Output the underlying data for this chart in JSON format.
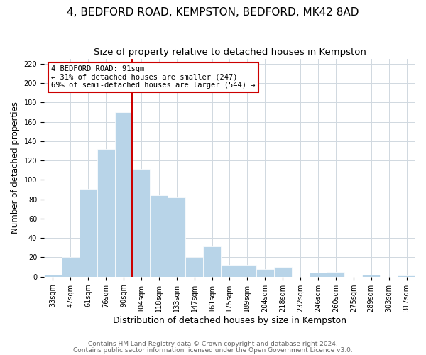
{
  "title": "4, BEDFORD ROAD, KEMPSTON, BEDFORD, MK42 8AD",
  "subtitle": "Size of property relative to detached houses in Kempston",
  "xlabel": "Distribution of detached houses by size in Kempston",
  "ylabel": "Number of detached properties",
  "bar_labels": [
    "33sqm",
    "47sqm",
    "61sqm",
    "76sqm",
    "90sqm",
    "104sqm",
    "118sqm",
    "133sqm",
    "147sqm",
    "161sqm",
    "175sqm",
    "189sqm",
    "204sqm",
    "218sqm",
    "232sqm",
    "246sqm",
    "260sqm",
    "275sqm",
    "289sqm",
    "303sqm",
    "317sqm"
  ],
  "bar_values": [
    2,
    20,
    91,
    132,
    170,
    111,
    84,
    82,
    20,
    31,
    12,
    12,
    8,
    10,
    0,
    4,
    5,
    0,
    2,
    0,
    1
  ],
  "bar_color": "#b8d4e8",
  "bar_edge_color": "#b8d4e8",
  "grid_color": "#d0d8e0",
  "background_color": "#ffffff",
  "annotation_box_text": "4 BEDFORD ROAD: 91sqm\n← 31% of detached houses are smaller (247)\n69% of semi-detached houses are larger (544) →",
  "annotation_box_edge_color": "#cc0000",
  "vline_color": "#cc0000",
  "ylim": [
    0,
    225
  ],
  "yticks": [
    0,
    20,
    40,
    60,
    80,
    100,
    120,
    140,
    160,
    180,
    200,
    220
  ],
  "footer_line1": "Contains HM Land Registry data © Crown copyright and database right 2024.",
  "footer_line2": "Contains public sector information licensed under the Open Government Licence v3.0.",
  "title_fontsize": 11,
  "subtitle_fontsize": 9.5,
  "xlabel_fontsize": 9,
  "ylabel_fontsize": 8.5,
  "tick_fontsize": 7,
  "annotation_fontsize": 7.5,
  "footer_fontsize": 6.5
}
